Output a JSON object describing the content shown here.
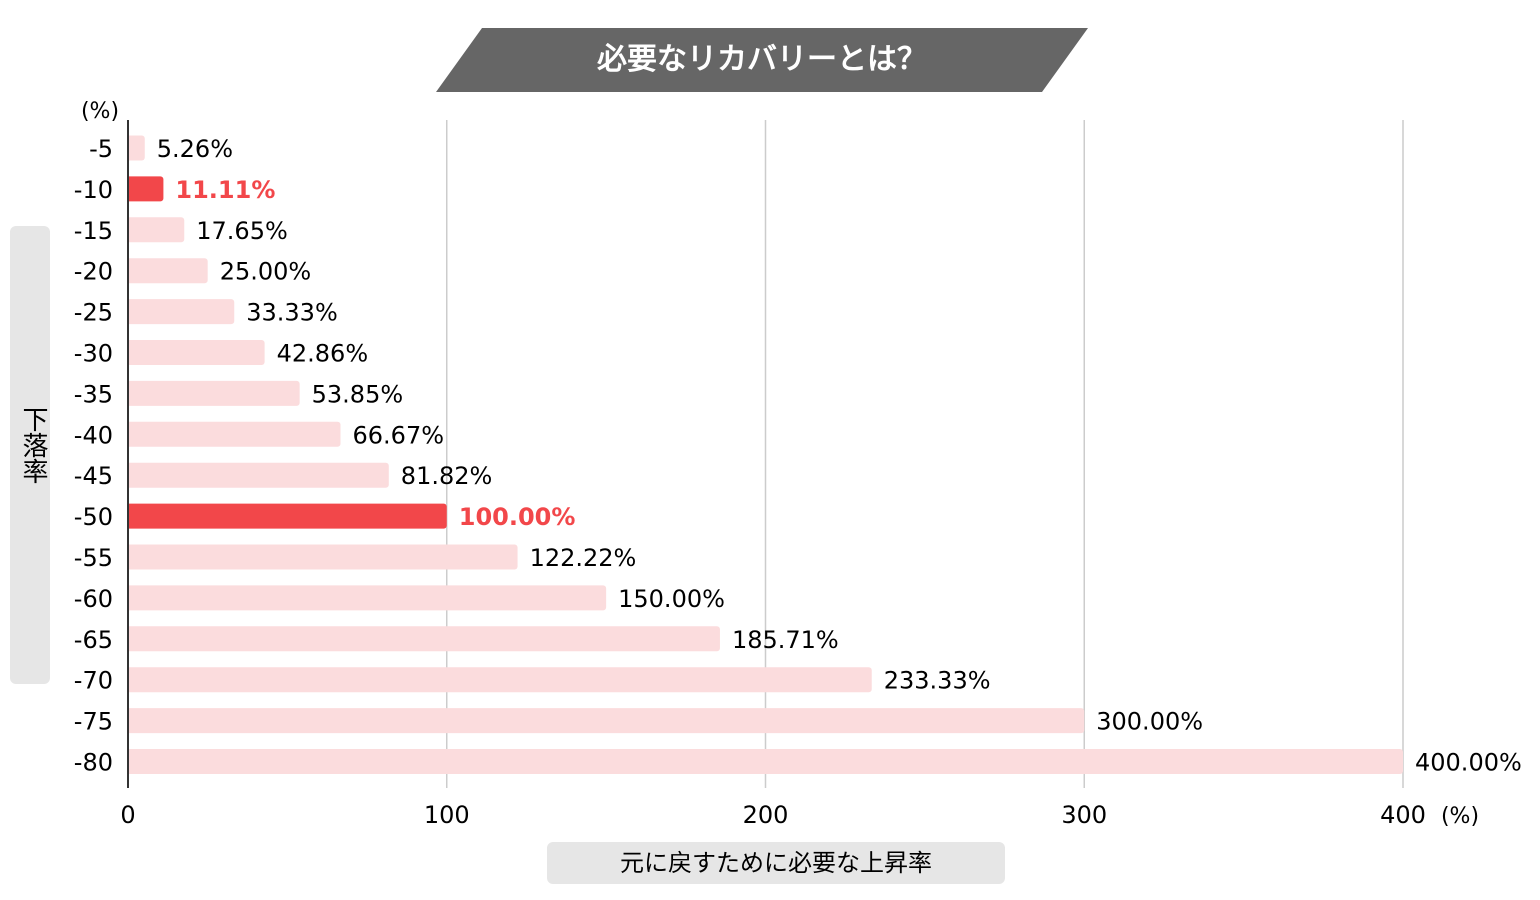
{
  "chart_data": {
    "type": "bar",
    "orientation": "horizontal",
    "title": "必要なリカバリーとは？",
    "ylabel": "下落率",
    "xlabel": "元に戻すために必要な上昇率",
    "y_unit": "(%)",
    "x_unit": "(%)",
    "categories": [
      "-5",
      "-10",
      "-15",
      "-20",
      "-25",
      "-30",
      "-35",
      "-40",
      "-45",
      "-50",
      "-55",
      "-60",
      "-65",
      "-70",
      "-75",
      "-80"
    ],
    "values": [
      5.26,
      11.11,
      17.65,
      25.0,
      33.33,
      42.86,
      53.85,
      66.67,
      81.82,
      100.0,
      122.22,
      150.0,
      185.71,
      233.33,
      300.0,
      400.0
    ],
    "data_labels": [
      "5.26%",
      "11.11%",
      "17.65%",
      "25.00%",
      "33.33%",
      "42.86%",
      "53.85%",
      "66.67%",
      "81.82%",
      "100.00%",
      "122.22%",
      "150.00%",
      "185.71%",
      "233.33%",
      "300.00%",
      "400.00%"
    ],
    "highlighted": [
      "-10",
      "-50"
    ],
    "xlim": [
      0,
      400
    ],
    "xticks": [
      "0",
      "100",
      "200",
      "300",
      "400"
    ],
    "grid": "vertical",
    "colors": {
      "bar": "#fbdcdd",
      "highlight": "#f2474a",
      "title_bg": "#666666",
      "grid": "#cccccc",
      "label_box": "#e6e6e6"
    }
  }
}
